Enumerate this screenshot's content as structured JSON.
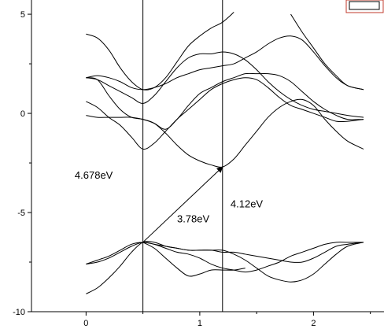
{
  "chart_data": {
    "type": "line",
    "title": "",
    "xlabel": "",
    "ylabel": "",
    "xlim": [
      -0.48,
      2.62
    ],
    "ylim": [
      -10,
      5.4
    ],
    "x_ticks": [
      0,
      1,
      2
    ],
    "x_tick_labels": [
      "0",
      "1",
      "2"
    ],
    "y_ticks": [
      5,
      0,
      -5,
      -10
    ],
    "y_tick_labels": [
      "5",
      "0",
      "-5",
      "-10"
    ],
    "vertical_lines_x": [
      0.5,
      1.2
    ],
    "grid": false,
    "legend": "none",
    "series": [
      {
        "x": [
          0,
          0.1,
          0.2,
          0.3,
          0.4,
          0.5,
          0.6,
          0.7,
          0.8,
          0.9,
          1.0,
          1.1,
          1.2,
          1.3
        ],
        "y": [
          4.0,
          3.8,
          3.2,
          2.3,
          1.6,
          1.2,
          1.3,
          1.8,
          2.6,
          3.4,
          3.9,
          4.3,
          4.6,
          5.1
        ]
      },
      {
        "x": [
          1.8,
          1.9,
          2.0,
          2.1,
          2.2,
          2.3,
          2.44
        ],
        "y": [
          5.0,
          4.1,
          3.3,
          2.5,
          1.9,
          1.4,
          1.2
        ]
      },
      {
        "x": [
          0,
          0.1,
          0.2,
          0.3,
          0.4,
          0.5,
          0.6,
          0.7,
          0.8,
          0.9,
          1.0,
          1.1,
          1.2,
          1.3,
          1.4,
          1.5,
          1.6,
          1.7,
          1.8,
          1.9,
          2.0,
          2.1,
          2.2,
          2.3,
          2.44
        ],
        "y": [
          1.8,
          1.7,
          1.4,
          1.1,
          0.8,
          0.5,
          0.9,
          1.6,
          2.3,
          2.8,
          3.0,
          3.0,
          3.1,
          3.0,
          2.7,
          2.2,
          1.6,
          1.1,
          0.7,
          0.4,
          0.2,
          0.1,
          0.0,
          -0.1,
          -0.2
        ]
      },
      {
        "x": [
          0,
          0.1,
          0.2,
          0.3,
          0.4,
          0.5,
          0.6,
          0.7,
          0.8,
          0.9,
          1.0,
          1.1,
          1.2,
          1.3,
          1.4,
          1.5,
          1.6,
          1.7,
          1.8,
          1.9,
          2.0,
          2.1,
          2.2,
          2.3,
          2.44
        ],
        "y": [
          1.8,
          1.9,
          1.8,
          1.6,
          1.3,
          1.2,
          1.3,
          1.5,
          1.8,
          2.0,
          2.2,
          2.3,
          2.4,
          2.5,
          2.8,
          3.1,
          3.5,
          3.8,
          3.9,
          3.7,
          3.1,
          2.4,
          1.8,
          1.4,
          1.2
        ]
      },
      {
        "x": [
          0,
          0.1,
          0.2,
          0.3,
          0.4,
          0.5,
          0.6,
          0.7,
          0.8,
          0.9,
          1.0,
          1.1,
          1.2,
          1.3,
          1.4,
          1.5,
          1.6,
          1.7,
          1.8,
          1.9,
          2.0,
          2.1,
          2.2,
          2.3,
          2.44
        ],
        "y": [
          1.8,
          1.7,
          0.9,
          0.2,
          -0.2,
          -0.3,
          -0.5,
          -0.8,
          -0.3,
          0.4,
          1.0,
          1.3,
          1.6,
          1.8,
          2.0,
          2.0,
          2.0,
          1.9,
          1.6,
          1.1,
          0.6,
          0.2,
          -0.1,
          -0.3,
          -0.3
        ]
      },
      {
        "x": [
          0,
          0.1,
          0.2,
          0.3,
          0.4,
          0.5,
          0.6,
          0.7,
          0.8,
          0.9,
          1.0,
          1.1,
          1.2,
          1.3,
          1.4,
          1.5,
          1.6,
          1.7,
          1.8,
          1.9,
          2.0,
          2.1,
          2.2,
          2.3,
          2.44
        ],
        "y": [
          0.6,
          0.3,
          -0.2,
          -0.6,
          -1.2,
          -1.8,
          -1.5,
          -0.9,
          -0.3,
          0.2,
          0.7,
          1.2,
          1.5,
          1.7,
          1.8,
          1.7,
          1.3,
          0.8,
          0.4,
          0.2,
          0.0,
          -0.2,
          -0.4,
          -0.4,
          -0.3
        ]
      },
      {
        "x": [
          0,
          0.1,
          0.2,
          0.3,
          0.4,
          0.5,
          0.6,
          0.7,
          0.8,
          0.9,
          1.0,
          1.1,
          1.2,
          1.3,
          1.4,
          1.5,
          1.6,
          1.7,
          1.8,
          1.9,
          2.0,
          2.1,
          2.2,
          2.3,
          2.44
        ],
        "y": [
          -0.1,
          -0.2,
          -0.2,
          -0.2,
          -0.2,
          -0.3,
          -0.5,
          -1.0,
          -1.6,
          -2.1,
          -2.4,
          -2.6,
          -2.7,
          -2.3,
          -1.6,
          -0.9,
          -0.2,
          0.3,
          0.6,
          0.7,
          0.4,
          -0.3,
          -0.9,
          -1.4,
          -1.8
        ]
      },
      {
        "x": [
          0,
          0.1,
          0.2,
          0.3,
          0.4,
          0.5,
          0.6,
          0.7,
          0.8,
          0.9,
          1.0,
          1.1,
          1.2,
          1.3,
          1.4,
          1.5,
          1.6,
          1.7,
          1.8,
          1.9,
          2.0,
          2.1,
          2.2,
          2.3,
          2.44
        ],
        "y": [
          -7.6,
          -7.5,
          -7.3,
          -7.0,
          -6.7,
          -6.5,
          -6.6,
          -6.8,
          -7.0,
          -7.1,
          -7.3,
          -7.6,
          -7.8,
          -7.9,
          -8.0,
          -7.9,
          -7.7,
          -7.5,
          -7.2,
          -7.0,
          -6.8,
          -6.6,
          -6.5,
          -6.5,
          -6.5
        ]
      },
      {
        "x": [
          0,
          0.1,
          0.2,
          0.3,
          0.4,
          0.5,
          0.6,
          0.7,
          0.8,
          0.9,
          1.0,
          1.1,
          1.2,
          1.3,
          1.4,
          1.5,
          1.6,
          1.7,
          1.8,
          1.9,
          2.0,
          2.1,
          2.2,
          2.3,
          2.44
        ],
        "y": [
          -9.1,
          -8.8,
          -8.3,
          -7.7,
          -7.0,
          -6.5,
          -6.5,
          -6.7,
          -6.8,
          -6.9,
          -6.9,
          -6.9,
          -7.0,
          -7.0,
          -7.1,
          -7.2,
          -7.3,
          -7.4,
          -7.5,
          -7.5,
          -7.3,
          -7.0,
          -6.7,
          -6.6,
          -6.5
        ]
      },
      {
        "x": [
          0,
          0.1,
          0.2,
          0.3,
          0.4,
          0.5,
          0.6,
          0.7,
          0.8,
          0.9,
          1.0,
          1.1,
          1.2,
          1.3,
          1.4,
          1.5,
          1.6,
          1.7,
          1.8,
          1.9,
          2.0,
          2.1,
          2.2,
          2.3,
          2.44
        ],
        "y": [
          -7.6,
          -7.4,
          -7.2,
          -6.9,
          -6.6,
          -6.5,
          -6.6,
          -6.7,
          -6.8,
          -6.9,
          -6.9,
          -6.9,
          -6.9,
          -7.1,
          -7.4,
          -7.8,
          -8.2,
          -8.4,
          -8.5,
          -8.4,
          -8.1,
          -7.6,
          -7.1,
          -6.7,
          -6.5
        ]
      },
      {
        "x": [
          0.5,
          0.6,
          0.7,
          0.8,
          0.9,
          1.0,
          1.1,
          1.2,
          1.3,
          1.4
        ],
        "y": [
          -6.5,
          -6.8,
          -7.3,
          -7.8,
          -8.2,
          -8.1,
          -7.9,
          -7.9,
          -7.9,
          -7.8
        ]
      }
    ],
    "annotations": [
      {
        "text": "4.678eV",
        "x": -0.1,
        "y": -3.3
      },
      {
        "text": "3.78eV",
        "x": 0.8,
        "y": -5.5
      },
      {
        "text": "4.12eV",
        "x": 1.27,
        "y": -4.75
      }
    ],
    "arrow": {
      "from": [
        0.5,
        -6.5
      ],
      "to": [
        1.2,
        -2.7
      ]
    }
  }
}
